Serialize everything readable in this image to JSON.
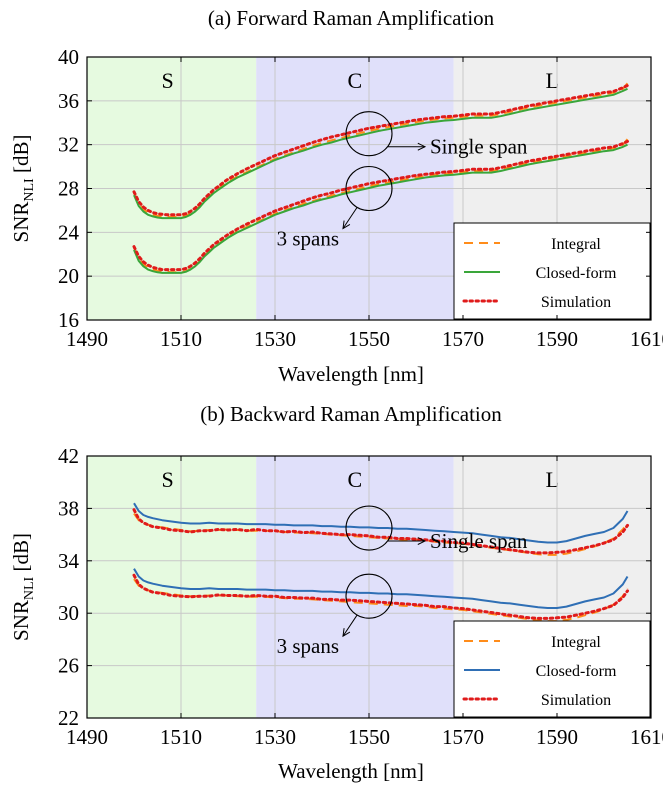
{
  "colors": {
    "band_s": "#e6fae0",
    "band_c": "#e0e0fa",
    "band_l": "#efefef",
    "integral": "#ff8c1a",
    "closed_form_a": "#3aa63a",
    "closed_form_b": "#2f6fb5",
    "simulation": "#e01b1b",
    "grid": "#c8c8c8"
  },
  "chart_data": [
    {
      "type": "line",
      "title": "(a) Forward Raman Amplification",
      "xlabel": "Wavelength [nm]",
      "ylabel_main": "SNR",
      "ylabel_sub": "NLI",
      "ylabel_unit": " [dB]",
      "xlim": [
        1490,
        1610
      ],
      "ylim": [
        16,
        40
      ],
      "xticks": [
        1490,
        1510,
        1530,
        1550,
        1570,
        1590,
        1610
      ],
      "yticks": [
        16,
        20,
        24,
        28,
        32,
        36,
        40
      ],
      "grid": true,
      "bands": [
        {
          "label": "S",
          "from": 1490,
          "to": 1526
        },
        {
          "label": "C",
          "from": 1526,
          "to": 1568
        },
        {
          "label": "L",
          "from": 1568,
          "to": 1610
        }
      ],
      "legend": [
        "Integral",
        "Closed-form",
        "Simulation"
      ],
      "legend_position": "bottom-right",
      "annotations": [
        {
          "text": "Single span",
          "x": 1550,
          "y": 33.0,
          "text_x": 1566,
          "text_y": 31.7
        },
        {
          "text": "3 spans",
          "x": 1550,
          "y": 28.0,
          "text_x": 1544,
          "text_y": 23.2
        }
      ],
      "x": [
        1500,
        1501,
        1502,
        1503,
        1504,
        1505,
        1506,
        1507,
        1508,
        1509,
        1510,
        1511,
        1512,
        1513,
        1514,
        1515,
        1516,
        1517,
        1518,
        1519,
        1520,
        1522,
        1524,
        1526,
        1528,
        1530,
        1532,
        1534,
        1536,
        1538,
        1540,
        1542,
        1544,
        1546,
        1548,
        1550,
        1552,
        1554,
        1556,
        1558,
        1560,
        1562,
        1564,
        1566,
        1568,
        1570,
        1572,
        1574,
        1576,
        1578,
        1580,
        1582,
        1584,
        1586,
        1588,
        1590,
        1592,
        1594,
        1596,
        1598,
        1600,
        1602,
        1604,
        1605
      ],
      "series": [
        {
          "name": "Integral",
          "group": "Single span",
          "values": [
            27.6,
            26.6,
            26.1,
            25.8,
            25.6,
            25.5,
            25.45,
            25.4,
            25.4,
            25.4,
            25.4,
            25.5,
            25.7,
            26.0,
            26.4,
            26.9,
            27.3,
            27.7,
            28.0,
            28.3,
            28.6,
            29.1,
            29.5,
            29.9,
            30.3,
            30.7,
            31.0,
            31.3,
            31.6,
            31.9,
            32.15,
            32.4,
            32.6,
            32.85,
            33.05,
            33.25,
            33.45,
            33.6,
            33.75,
            33.9,
            34.05,
            34.2,
            34.3,
            34.4,
            34.45,
            34.55,
            34.65,
            34.65,
            34.65,
            34.8,
            35.0,
            35.2,
            35.4,
            35.55,
            35.7,
            35.85,
            36.0,
            36.15,
            36.3,
            36.45,
            36.6,
            36.75,
            37.1,
            37.6
          ]
        },
        {
          "name": "Closed-form",
          "group": "Single span",
          "values": [
            27.4,
            26.4,
            25.9,
            25.6,
            25.45,
            25.35,
            25.3,
            25.3,
            25.3,
            25.3,
            25.3,
            25.4,
            25.6,
            25.9,
            26.3,
            26.8,
            27.2,
            27.6,
            27.9,
            28.2,
            28.5,
            29.0,
            29.4,
            29.8,
            30.2,
            30.6,
            30.9,
            31.2,
            31.45,
            31.75,
            32.0,
            32.2,
            32.45,
            32.65,
            32.85,
            33.05,
            33.25,
            33.4,
            33.55,
            33.7,
            33.85,
            34.0,
            34.1,
            34.2,
            34.25,
            34.35,
            34.45,
            34.45,
            34.45,
            34.6,
            34.8,
            35.0,
            35.2,
            35.35,
            35.5,
            35.65,
            35.8,
            35.95,
            36.1,
            36.25,
            36.4,
            36.55,
            36.9,
            37.1
          ]
        },
        {
          "name": "Simulation",
          "group": "Single span",
          "values": [
            27.7,
            26.8,
            26.3,
            26.0,
            25.8,
            25.7,
            25.65,
            25.6,
            25.6,
            25.6,
            25.6,
            25.7,
            25.9,
            26.2,
            26.6,
            27.1,
            27.5,
            27.9,
            28.2,
            28.55,
            28.85,
            29.35,
            29.8,
            30.2,
            30.6,
            31.0,
            31.3,
            31.6,
            31.9,
            32.2,
            32.45,
            32.7,
            32.9,
            33.1,
            33.3,
            33.5,
            33.65,
            33.8,
            33.95,
            34.1,
            34.25,
            34.35,
            34.45,
            34.55,
            34.6,
            34.7,
            34.8,
            34.8,
            34.8,
            34.95,
            35.15,
            35.35,
            35.55,
            35.7,
            35.85,
            36.0,
            36.15,
            36.3,
            36.45,
            36.6,
            36.75,
            36.85,
            37.2,
            37.4
          ]
        },
        {
          "name": "Integral",
          "group": "3 spans",
          "values": [
            22.6,
            21.6,
            21.1,
            20.8,
            20.6,
            20.5,
            20.4,
            20.4,
            20.35,
            20.35,
            20.35,
            20.45,
            20.65,
            20.95,
            21.35,
            21.85,
            22.25,
            22.65,
            22.95,
            23.25,
            23.55,
            24.1,
            24.5,
            24.9,
            25.3,
            25.7,
            26.0,
            26.3,
            26.6,
            26.85,
            27.1,
            27.35,
            27.55,
            27.8,
            28.0,
            28.2,
            28.4,
            28.55,
            28.7,
            28.85,
            29.0,
            29.15,
            29.25,
            29.35,
            29.4,
            29.5,
            29.6,
            29.6,
            29.6,
            29.75,
            29.95,
            30.15,
            30.35,
            30.5,
            30.65,
            30.8,
            30.95,
            31.1,
            31.25,
            31.4,
            31.55,
            31.7,
            32.0,
            32.5
          ]
        },
        {
          "name": "Closed-form",
          "group": "3 spans",
          "values": [
            22.4,
            21.4,
            20.9,
            20.6,
            20.45,
            20.35,
            20.3,
            20.3,
            20.3,
            20.3,
            20.3,
            20.4,
            20.6,
            20.9,
            21.3,
            21.8,
            22.2,
            22.6,
            22.9,
            23.2,
            23.5,
            24.0,
            24.4,
            24.8,
            25.2,
            25.6,
            25.9,
            26.2,
            26.45,
            26.75,
            27.0,
            27.2,
            27.45,
            27.65,
            27.85,
            28.05,
            28.25,
            28.4,
            28.55,
            28.7,
            28.85,
            29.0,
            29.1,
            29.2,
            29.25,
            29.35,
            29.45,
            29.45,
            29.45,
            29.6,
            29.8,
            30.0,
            30.2,
            30.35,
            30.5,
            30.65,
            30.8,
            30.95,
            31.1,
            31.25,
            31.4,
            31.5,
            31.8,
            32.0
          ]
        },
        {
          "name": "Simulation",
          "group": "3 spans",
          "values": [
            22.7,
            21.8,
            21.3,
            21.0,
            20.8,
            20.7,
            20.6,
            20.6,
            20.6,
            20.6,
            20.6,
            20.7,
            20.9,
            21.2,
            21.6,
            22.1,
            22.5,
            22.9,
            23.2,
            23.5,
            23.8,
            24.3,
            24.75,
            25.15,
            25.55,
            25.95,
            26.25,
            26.55,
            26.85,
            27.15,
            27.4,
            27.6,
            27.85,
            28.05,
            28.25,
            28.45,
            28.6,
            28.75,
            28.9,
            29.05,
            29.2,
            29.3,
            29.4,
            29.5,
            29.55,
            29.65,
            29.75,
            29.75,
            29.75,
            29.9,
            30.1,
            30.3,
            30.5,
            30.65,
            30.8,
            30.95,
            31.1,
            31.25,
            31.4,
            31.55,
            31.7,
            31.8,
            32.1,
            32.3
          ]
        }
      ]
    },
    {
      "type": "line",
      "title": "(b) Backward Raman Amplification",
      "xlabel": "Wavelength [nm]",
      "ylabel_main": "SNR",
      "ylabel_sub": "NLI",
      "ylabel_unit": " [dB]",
      "xlim": [
        1490,
        1610
      ],
      "ylim": [
        22,
        42
      ],
      "xticks": [
        1490,
        1510,
        1530,
        1550,
        1570,
        1590,
        1610
      ],
      "yticks": [
        22,
        26,
        30,
        34,
        38,
        42
      ],
      "grid": true,
      "bands": [
        {
          "label": "S",
          "from": 1490,
          "to": 1526
        },
        {
          "label": "C",
          "from": 1526,
          "to": 1568
        },
        {
          "label": "L",
          "from": 1568,
          "to": 1610
        }
      ],
      "legend": [
        "Integral",
        "Closed-form",
        "Simulation"
      ],
      "legend_position": "bottom-right",
      "annotations": [
        {
          "text": "Single span",
          "x": 1550,
          "y": 36.5,
          "text_x": 1566,
          "text_y": 34.9
        },
        {
          "text": "3 spans",
          "x": 1550,
          "y": 31.3,
          "text_x": 1544,
          "text_y": 28.0
        }
      ],
      "x": [
        1500,
        1501,
        1502,
        1503,
        1504,
        1506,
        1508,
        1510,
        1512,
        1514,
        1516,
        1518,
        1520,
        1522,
        1524,
        1526,
        1528,
        1530,
        1532,
        1534,
        1536,
        1538,
        1540,
        1542,
        1544,
        1546,
        1548,
        1550,
        1552,
        1554,
        1556,
        1558,
        1560,
        1562,
        1564,
        1566,
        1568,
        1570,
        1572,
        1574,
        1576,
        1578,
        1580,
        1582,
        1584,
        1586,
        1588,
        1590,
        1592,
        1594,
        1596,
        1598,
        1600,
        1602,
        1604,
        1605
      ],
      "series": [
        {
          "name": "Integral",
          "group": "Single span",
          "values": [
            37.6,
            37.1,
            36.9,
            36.75,
            36.65,
            36.55,
            36.45,
            36.35,
            36.25,
            36.3,
            36.35,
            36.35,
            36.4,
            36.35,
            36.3,
            36.3,
            36.3,
            36.25,
            36.2,
            36.15,
            36.15,
            36.1,
            36.05,
            36.0,
            35.95,
            35.9,
            35.85,
            35.8,
            35.75,
            35.7,
            35.65,
            35.6,
            35.6,
            35.55,
            35.45,
            35.4,
            35.35,
            35.3,
            35.2,
            35.1,
            35.0,
            34.9,
            34.8,
            34.7,
            34.6,
            34.5,
            34.45,
            34.45,
            34.55,
            34.7,
            34.9,
            35.1,
            35.35,
            35.7,
            36.4,
            36.9
          ]
        },
        {
          "name": "Closed-form",
          "group": "Single span",
          "values": [
            38.4,
            37.8,
            37.5,
            37.35,
            37.25,
            37.1,
            37.0,
            36.9,
            36.85,
            36.85,
            36.9,
            36.85,
            36.85,
            36.85,
            36.8,
            36.8,
            36.8,
            36.75,
            36.75,
            36.7,
            36.7,
            36.7,
            36.65,
            36.65,
            36.6,
            36.6,
            36.55,
            36.55,
            36.5,
            36.5,
            36.45,
            36.45,
            36.4,
            36.35,
            36.3,
            36.25,
            36.2,
            36.15,
            36.1,
            36.0,
            35.9,
            35.8,
            35.75,
            35.65,
            35.55,
            35.45,
            35.4,
            35.4,
            35.5,
            35.7,
            35.9,
            36.05,
            36.2,
            36.5,
            37.2,
            37.8
          ]
        },
        {
          "name": "Simulation",
          "group": "Single span",
          "values": [
            37.9,
            37.2,
            36.9,
            36.75,
            36.6,
            36.5,
            36.35,
            36.3,
            36.2,
            36.3,
            36.3,
            36.4,
            36.35,
            36.4,
            36.3,
            36.4,
            36.3,
            36.3,
            36.2,
            36.25,
            36.15,
            36.2,
            36.1,
            36.05,
            36.0,
            36.0,
            35.95,
            35.9,
            35.8,
            35.8,
            35.7,
            35.7,
            35.65,
            35.6,
            35.5,
            35.5,
            35.4,
            35.35,
            35.25,
            35.15,
            35.05,
            34.95,
            34.85,
            34.75,
            34.65,
            34.6,
            34.6,
            34.65,
            34.7,
            34.85,
            35.0,
            35.15,
            35.35,
            35.6,
            36.2,
            36.7
          ]
        },
        {
          "name": "Integral",
          "group": "3 spans",
          "values": [
            32.6,
            32.1,
            31.9,
            31.75,
            31.65,
            31.55,
            31.45,
            31.35,
            31.3,
            31.3,
            31.35,
            31.35,
            31.35,
            31.3,
            31.25,
            31.25,
            31.25,
            31.2,
            31.15,
            31.1,
            31.1,
            31.05,
            31.0,
            30.95,
            30.9,
            30.85,
            30.8,
            30.75,
            30.7,
            30.65,
            30.6,
            30.55,
            30.55,
            30.5,
            30.4,
            30.35,
            30.3,
            30.25,
            30.15,
            30.05,
            29.95,
            29.85,
            29.75,
            29.65,
            29.55,
            29.45,
            29.4,
            29.4,
            29.5,
            29.65,
            29.85,
            30.05,
            30.3,
            30.65,
            31.3,
            31.9
          ]
        },
        {
          "name": "Closed-form",
          "group": "3 spans",
          "values": [
            33.4,
            32.8,
            32.5,
            32.35,
            32.25,
            32.1,
            32.0,
            31.9,
            31.85,
            31.85,
            31.9,
            31.85,
            31.85,
            31.85,
            31.8,
            31.8,
            31.8,
            31.75,
            31.75,
            31.7,
            31.7,
            31.7,
            31.65,
            31.65,
            31.6,
            31.6,
            31.55,
            31.55,
            31.5,
            31.5,
            31.45,
            31.45,
            31.4,
            31.35,
            31.3,
            31.25,
            31.2,
            31.15,
            31.1,
            31.0,
            30.9,
            30.8,
            30.75,
            30.65,
            30.55,
            30.45,
            30.4,
            30.4,
            30.5,
            30.7,
            30.9,
            31.05,
            31.2,
            31.5,
            32.2,
            32.8
          ]
        },
        {
          "name": "Simulation",
          "group": "3 spans",
          "values": [
            32.9,
            32.2,
            31.9,
            31.75,
            31.6,
            31.5,
            31.35,
            31.3,
            31.25,
            31.3,
            31.3,
            31.4,
            31.35,
            31.35,
            31.3,
            31.35,
            31.3,
            31.3,
            31.2,
            31.2,
            31.15,
            31.15,
            31.05,
            31.05,
            31.0,
            31.0,
            30.95,
            30.9,
            30.85,
            30.8,
            30.75,
            30.7,
            30.65,
            30.6,
            30.5,
            30.5,
            30.4,
            30.35,
            30.25,
            30.15,
            30.05,
            29.95,
            29.85,
            29.75,
            29.65,
            29.6,
            29.6,
            29.65,
            29.7,
            29.85,
            30.0,
            30.15,
            30.35,
            30.6,
            31.2,
            31.7
          ]
        }
      ]
    }
  ]
}
